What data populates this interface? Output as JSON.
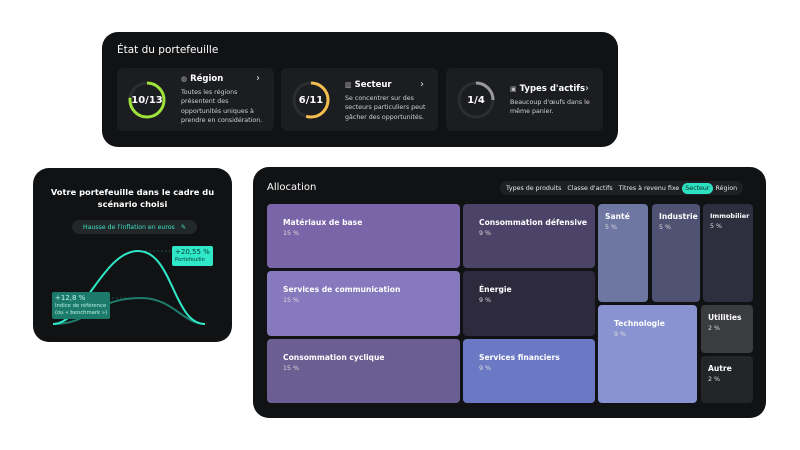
{
  "status": {
    "title": "État du portefeuille",
    "cards": [
      {
        "icon": "globe-icon",
        "label": "Région",
        "value": "10/13",
        "fraction": 0.769,
        "color": "#9ee23a",
        "desc": "Toutes les régions présentent des opportunités uniques à prendre en considération."
      },
      {
        "icon": "bar-chart-icon",
        "label": "Secteur",
        "value": "6/11",
        "fraction": 0.545,
        "color": "#f5bf4f",
        "desc": "Se concentrer sur des secteurs particuliers peut gâcher des opportunités."
      },
      {
        "icon": "briefcase-icon",
        "label": "Types d'actifs",
        "value": "1/4",
        "fraction": 0.25,
        "color": "#9a9a9a",
        "desc": "Beaucoup d'œufs dans le même panier."
      }
    ]
  },
  "scenario": {
    "title": "Votre portefeuille dans le cadre du scénario choisi",
    "selected": "Hausse de l'inflation en euros",
    "portfolio_value": "+20,55 %",
    "portfolio_label": "Portefeuille",
    "benchmark_value": "+12,8 %",
    "benchmark_label1": "Indice de référence",
    "benchmark_label2": "(ou « benchmark »)",
    "accent": "#2ee8c8"
  },
  "allocation": {
    "title": "Allocation",
    "tabs": [
      "Types de produits",
      "Classe d'actifs",
      "Titres à revenu fixe",
      "Secteur",
      "Région"
    ],
    "active_tab": "Secteur",
    "tiles": [
      {
        "name": "Matériaux de base",
        "value": "15 %",
        "color": "#7a65a8"
      },
      {
        "name": "Services de communication",
        "value": "15 %",
        "color": "#8679bd"
      },
      {
        "name": "Consommation cyclique",
        "value": "15 %",
        "color": "#6a5e92"
      },
      {
        "name": "Consommation défensive",
        "value": "9 %",
        "color": "#4c4468"
      },
      {
        "name": "Énergie",
        "value": "9 %",
        "color": "#2e2a3e"
      },
      {
        "name": "Services financiers",
        "value": "9 %",
        "color": "#6b79c4"
      },
      {
        "name": "Santé",
        "value": "5 %",
        "color": "#6e76a2"
      },
      {
        "name": "Industrie",
        "value": "5 %",
        "color": "#4f5273"
      },
      {
        "name": "Immobilier",
        "value": "5 %",
        "color": "#2d2e3e"
      },
      {
        "name": "Technologie",
        "value": "9 %",
        "color": "#8a93d2"
      },
      {
        "name": "Utilities",
        "value": "2 %",
        "color": "#3a3c40"
      },
      {
        "name": "Autre",
        "value": "2 %",
        "color": "#232528"
      }
    ]
  }
}
